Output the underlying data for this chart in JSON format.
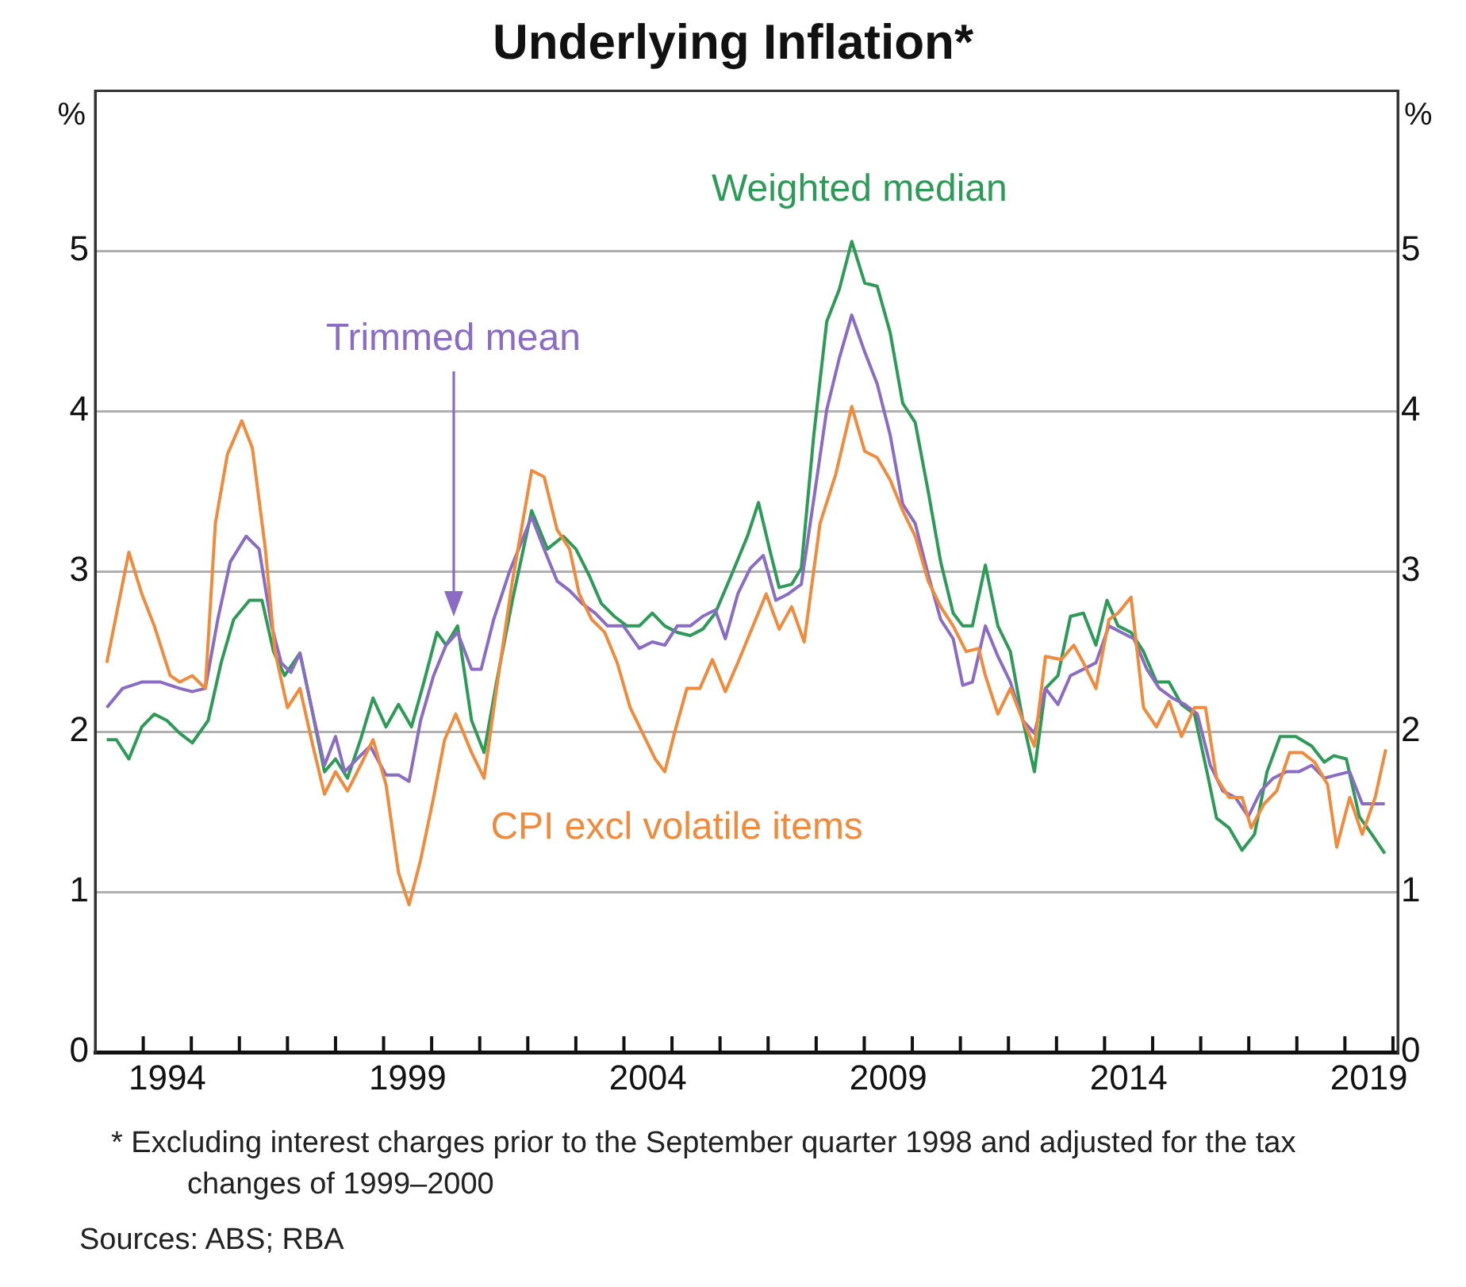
{
  "chart_data": {
    "type": "line",
    "title": "Underlying Inflation*",
    "ylabel": "%",
    "y2label": "%",
    "xlim": [
      1993,
      2020.1
    ],
    "xticks": [
      {
        "value": 1994,
        "label": null
      },
      {
        "value": 1994.5,
        "label": "1994"
      },
      {
        "value": 1995,
        "label": null
      },
      {
        "value": 1996,
        "label": null
      },
      {
        "value": 1997,
        "label": null
      },
      {
        "value": 1998,
        "label": null
      },
      {
        "value": 1999,
        "label": null
      },
      {
        "value": 1999.5,
        "label": "1999"
      },
      {
        "value": 2000,
        "label": null
      },
      {
        "value": 2001,
        "label": null
      },
      {
        "value": 2002,
        "label": null
      },
      {
        "value": 2003,
        "label": null
      },
      {
        "value": 2004,
        "label": null
      },
      {
        "value": 2004.5,
        "label": "2004"
      },
      {
        "value": 2005,
        "label": null
      },
      {
        "value": 2006,
        "label": null
      },
      {
        "value": 2007,
        "label": null
      },
      {
        "value": 2008,
        "label": null
      },
      {
        "value": 2009,
        "label": null
      },
      {
        "value": 2009.5,
        "label": "2009"
      },
      {
        "value": 2010,
        "label": null
      },
      {
        "value": 2011,
        "label": null
      },
      {
        "value": 2012,
        "label": null
      },
      {
        "value": 2013,
        "label": null
      },
      {
        "value": 2014,
        "label": null
      },
      {
        "value": 2014.5,
        "label": "2014"
      },
      {
        "value": 2015,
        "label": null
      },
      {
        "value": 2016,
        "label": null
      },
      {
        "value": 2017,
        "label": null
      },
      {
        "value": 2018,
        "label": null
      },
      {
        "value": 2019,
        "label": null
      },
      {
        "value": 2019.5,
        "label": "2019"
      },
      {
        "value": 2020,
        "label": null
      }
    ],
    "ylim": [
      0,
      6
    ],
    "yticks": [
      0,
      1,
      2,
      3,
      4,
      5
    ],
    "y2lim": [
      0,
      6
    ],
    "y2ticks": [
      0,
      1,
      2,
      3,
      4,
      5
    ],
    "grid": "y",
    "legend": false,
    "marker": "none",
    "line_style": "solid",
    "series": [
      {
        "name": "CPI excl volatile items",
        "color": "#f08a3c",
        "x": [
          1993.24,
          1993.7,
          1993.97,
          1994.23,
          1994.56,
          1994.76,
          1995.02,
          1995.29,
          1995.5,
          1995.75,
          1996.05,
          1996.27,
          1996.54,
          1996.74,
          1997.0,
          1997.26,
          1997.53,
          1997.77,
          1998.0,
          1998.25,
          1998.52,
          1998.78,
          1999.05,
          1999.31,
          1999.53,
          1999.77,
          2000.04,
          2000.27,
          2000.5,
          2000.83,
          2001.09,
          2001.35,
          2001.68,
          2002.08,
          2002.34,
          2002.61,
          2002.87,
          2003.07,
          2003.33,
          2003.6,
          2003.86,
          2004.13,
          2004.39,
          2004.65,
          2004.85,
          2005.05,
          2005.31,
          2005.58,
          2005.84,
          2006.11,
          2006.37,
          2006.63,
          2006.96,
          2007.23,
          2007.49,
          2007.75,
          2008.08,
          2008.41,
          2008.74,
          2009.01,
          2009.27,
          2009.54,
          2009.8,
          2010.06,
          2010.33,
          2010.59,
          2010.85,
          2011.12,
          2011.38,
          2011.52,
          2011.78,
          2012.04,
          2012.3,
          2012.54,
          2012.77,
          2013.1,
          2013.36,
          2013.56,
          2013.82,
          2014.09,
          2014.28,
          2014.55,
          2014.81,
          2015.08,
          2015.34,
          2015.6,
          2015.87,
          2016.1,
          2016.33,
          2016.59,
          2016.86,
          2017.05,
          2017.32,
          2017.58,
          2017.85,
          2018.11,
          2018.37,
          2018.64,
          2018.83,
          2019.1,
          2019.36,
          2019.63,
          2019.85
        ],
        "values": [
          2.43,
          3.12,
          2.86,
          2.66,
          2.35,
          2.31,
          2.35,
          2.27,
          3.3,
          3.73,
          3.94,
          3.77,
          3.14,
          2.5,
          2.15,
          2.27,
          1.91,
          1.61,
          1.75,
          1.63,
          1.79,
          1.95,
          1.67,
          1.12,
          0.92,
          1.2,
          1.59,
          1.95,
          2.11,
          1.87,
          1.71,
          2.27,
          2.94,
          3.63,
          3.59,
          3.26,
          3.14,
          2.86,
          2.7,
          2.62,
          2.43,
          2.15,
          1.99,
          1.83,
          1.75,
          1.99,
          2.27,
          2.27,
          2.45,
          2.25,
          2.43,
          2.62,
          2.86,
          2.64,
          2.78,
          2.56,
          3.3,
          3.61,
          4.03,
          3.75,
          3.71,
          3.57,
          3.38,
          3.22,
          2.94,
          2.78,
          2.66,
          2.5,
          2.52,
          2.35,
          2.11,
          2.27,
          2.07,
          1.91,
          2.47,
          2.45,
          2.54,
          2.43,
          2.27,
          2.7,
          2.74,
          2.84,
          2.15,
          2.03,
          2.19,
          1.97,
          2.15,
          2.15,
          1.71,
          1.59,
          1.59,
          1.4,
          1.55,
          1.63,
          1.87,
          1.87,
          1.81,
          1.67,
          1.28,
          1.59,
          1.36,
          1.59,
          1.89
        ]
      },
      {
        "name": "Trimmed mean",
        "color": "#8a6cc4",
        "x": [
          1993.24,
          1993.57,
          1993.97,
          1994.36,
          1994.76,
          1995.02,
          1995.29,
          1995.55,
          1995.81,
          1996.14,
          1996.41,
          1996.67,
          1996.87,
          1997.07,
          1997.26,
          1997.53,
          1997.77,
          1998.0,
          1998.19,
          1998.45,
          1998.72,
          1999.05,
          1999.31,
          1999.53,
          1999.77,
          2000.04,
          2000.3,
          2000.54,
          2000.83,
          2001.03,
          2001.29,
          2001.62,
          2002.08,
          2002.34,
          2002.61,
          2002.87,
          2003.13,
          2003.4,
          2003.66,
          2003.99,
          2004.32,
          2004.59,
          2004.85,
          2005.11,
          2005.38,
          2005.64,
          2005.9,
          2006.11,
          2006.37,
          2006.63,
          2006.9,
          2007.16,
          2007.42,
          2007.69,
          2007.95,
          2008.22,
          2008.48,
          2008.74,
          2009.01,
          2009.27,
          2009.54,
          2009.8,
          2010.06,
          2010.33,
          2010.59,
          2010.85,
          2011.05,
          2011.25,
          2011.52,
          2011.78,
          2012.04,
          2012.3,
          2012.54,
          2012.77,
          2013.03,
          2013.29,
          2013.56,
          2013.82,
          2014.09,
          2014.35,
          2014.61,
          2014.88,
          2015.14,
          2015.41,
          2015.67,
          2015.93,
          2016.2,
          2016.46,
          2016.72,
          2016.99,
          2017.25,
          2017.51,
          2017.78,
          2018.04,
          2018.31,
          2018.57,
          2018.83,
          2019.1,
          2019.36,
          2019.83
        ],
        "values": [
          2.15,
          2.27,
          2.31,
          2.31,
          2.27,
          2.25,
          2.27,
          2.7,
          3.06,
          3.22,
          3.14,
          2.66,
          2.43,
          2.37,
          2.49,
          2.11,
          1.79,
          1.97,
          1.75,
          1.83,
          1.91,
          1.73,
          1.73,
          1.69,
          2.07,
          2.35,
          2.54,
          2.62,
          2.39,
          2.39,
          2.7,
          3.0,
          3.34,
          3.14,
          2.94,
          2.88,
          2.8,
          2.74,
          2.66,
          2.66,
          2.52,
          2.56,
          2.54,
          2.66,
          2.66,
          2.72,
          2.76,
          2.58,
          2.86,
          3.02,
          3.1,
          2.82,
          2.86,
          2.92,
          3.45,
          4.01,
          4.33,
          4.6,
          4.37,
          4.17,
          3.85,
          3.42,
          3.3,
          2.98,
          2.7,
          2.58,
          2.29,
          2.31,
          2.66,
          2.47,
          2.31,
          2.07,
          1.99,
          2.27,
          2.17,
          2.35,
          2.39,
          2.43,
          2.66,
          2.62,
          2.58,
          2.39,
          2.27,
          2.21,
          2.17,
          2.11,
          1.79,
          1.63,
          1.59,
          1.47,
          1.63,
          1.71,
          1.75,
          1.75,
          1.79,
          1.71,
          1.73,
          1.75,
          1.55,
          1.55
        ]
      },
      {
        "name": "Weighted median",
        "color": "#2e9a58",
        "x": [
          1993.24,
          1993.44,
          1993.7,
          1993.97,
          1994.23,
          1994.49,
          1994.76,
          1995.02,
          1995.35,
          1995.62,
          1995.88,
          1996.21,
          1996.47,
          1996.71,
          1996.94,
          1997.26,
          1997.5,
          1997.77,
          1998.0,
          1998.25,
          1998.52,
          1998.78,
          1999.05,
          1999.31,
          1999.58,
          1999.84,
          2000.11,
          2000.3,
          2000.54,
          2000.83,
          2001.09,
          2001.35,
          2001.68,
          2002.08,
          2002.41,
          2002.74,
          2003.0,
          2003.27,
          2003.53,
          2003.8,
          2004.06,
          2004.32,
          2004.59,
          2004.85,
          2005.11,
          2005.38,
          2005.64,
          2005.9,
          2006.24,
          2006.57,
          2006.8,
          2007.03,
          2007.23,
          2007.49,
          2007.69,
          2007.95,
          2008.22,
          2008.48,
          2008.74,
          2009.01,
          2009.27,
          2009.54,
          2009.8,
          2010.06,
          2010.33,
          2010.59,
          2010.85,
          2011.05,
          2011.25,
          2011.52,
          2011.78,
          2012.04,
          2012.3,
          2012.54,
          2012.77,
          2013.03,
          2013.29,
          2013.56,
          2013.82,
          2014.05,
          2014.28,
          2014.55,
          2014.81,
          2015.08,
          2015.34,
          2015.6,
          2015.87,
          2016.13,
          2016.33,
          2016.59,
          2016.86,
          2017.12,
          2017.38,
          2017.65,
          2017.98,
          2018.31,
          2018.57,
          2018.77,
          2019.03,
          2019.3,
          2019.56,
          2019.83
        ],
        "values": [
          1.95,
          1.95,
          1.83,
          2.03,
          2.11,
          2.07,
          1.99,
          1.93,
          2.07,
          2.43,
          2.7,
          2.82,
          2.82,
          2.5,
          2.35,
          2.49,
          2.15,
          1.75,
          1.83,
          1.71,
          1.95,
          2.21,
          2.03,
          2.17,
          2.03,
          2.31,
          2.62,
          2.54,
          2.66,
          2.07,
          1.87,
          2.31,
          2.82,
          3.38,
          3.14,
          3.22,
          3.14,
          2.98,
          2.8,
          2.72,
          2.66,
          2.66,
          2.74,
          2.66,
          2.62,
          2.6,
          2.64,
          2.74,
          2.98,
          3.22,
          3.43,
          3.14,
          2.9,
          2.92,
          3.02,
          3.85,
          4.56,
          4.76,
          5.06,
          4.8,
          4.78,
          4.49,
          4.05,
          3.93,
          3.5,
          3.06,
          2.74,
          2.66,
          2.66,
          3.04,
          2.66,
          2.5,
          2.07,
          1.75,
          2.27,
          2.35,
          2.72,
          2.74,
          2.54,
          2.82,
          2.66,
          2.62,
          2.5,
          2.31,
          2.31,
          2.17,
          2.11,
          1.75,
          1.46,
          1.4,
          1.26,
          1.36,
          1.75,
          1.97,
          1.97,
          1.91,
          1.81,
          1.85,
          1.83,
          1.47,
          1.36,
          1.24
        ]
      }
    ],
    "annotations": [
      "* Excluding interest charges prior to the September quarter 1998 and adjusted for the tax changes of 1999–2000",
      "Sources: ABS; RBA"
    ]
  }
}
